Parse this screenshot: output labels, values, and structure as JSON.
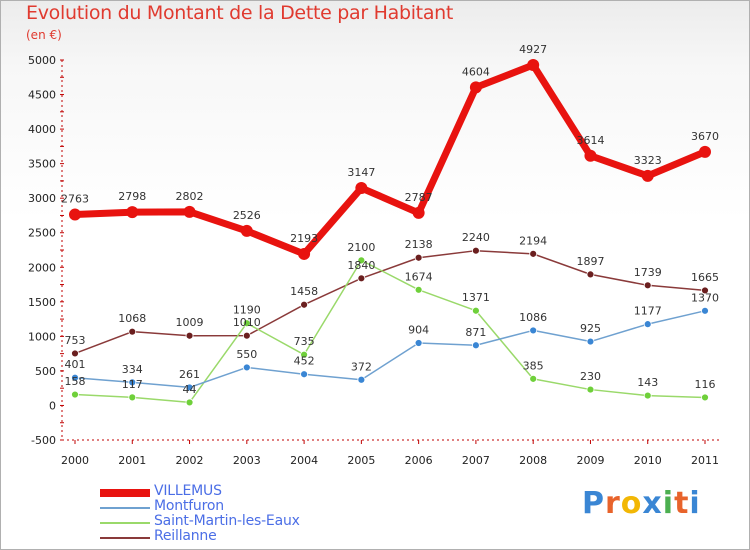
{
  "title": "Evolution du Montant de la Dette par Habitant",
  "unit": "(en €)",
  "logo": {
    "text": "Proxiti",
    "letters": [
      "P",
      "r",
      "o",
      "x",
      "i",
      "t",
      "i"
    ],
    "colors": [
      "#3a86d4",
      "#e8632b",
      "#f2b705",
      "#3a86d4",
      "#4caf50",
      "#e8632b",
      "#3a86d4"
    ]
  },
  "chart_data": {
    "type": "line",
    "x": [
      "2000",
      "2001",
      "2002",
      "2003",
      "2004",
      "2005",
      "2006",
      "2007",
      "2008",
      "2009",
      "2010",
      "2011"
    ],
    "yticks": [
      "-500",
      "0",
      "500",
      "1000",
      "1500",
      "2000",
      "2500",
      "3000",
      "3500",
      "4000",
      "4500",
      "5000"
    ],
    "ylim": [
      -500,
      5000
    ],
    "grid": false,
    "legend_position": "bottom-left",
    "series": [
      {
        "name": "VILLEMUS",
        "color": "#e8130f",
        "marker": "#e8130f",
        "width": 7,
        "radius": 6,
        "values": [
          2763,
          2798,
          2802,
          2526,
          2193,
          3147,
          2787,
          4604,
          4927,
          3614,
          3323,
          3670
        ],
        "labels": [
          "2763",
          "2798",
          "2802",
          "2526",
          "2193",
          "3147",
          "2787",
          "4604",
          "4927",
          "3614",
          "3323",
          "3670"
        ]
      },
      {
        "name": "Montfuron",
        "color": "#6fa1d0",
        "marker": "#3a86d4",
        "width": 1.5,
        "radius": 3.5,
        "values": [
          401,
          334,
          261,
          550,
          452,
          372,
          904,
          871,
          1086,
          925,
          1177,
          1370
        ],
        "labels": [
          "401",
          "334",
          "261",
          "550",
          "452",
          "372",
          "904",
          "871",
          "1086",
          "925",
          "1177",
          "1370"
        ]
      },
      {
        "name": "Saint-Martin-les-Eaux",
        "color": "#9ad96a",
        "marker": "#6fd03a",
        "width": 1.5,
        "radius": 3.5,
        "values": [
          158,
          117,
          44,
          1190,
          735,
          2100,
          1674,
          1371,
          385,
          230,
          143,
          116
        ],
        "labels": [
          "158",
          "117",
          "44",
          "1190",
          "735",
          "2100",
          "1674",
          "1371",
          "385",
          "230",
          "143",
          "116"
        ]
      },
      {
        "name": "Reillanne",
        "color": "#8a3a3a",
        "marker": "#6b1f1f",
        "width": 1.5,
        "radius": 3.5,
        "values": [
          753,
          1068,
          1009,
          1010,
          1458,
          1840,
          2138,
          2240,
          2194,
          1897,
          1739,
          1665
        ],
        "labels": [
          "753",
          "1068",
          "1009",
          "1010",
          "1458",
          "1840",
          "2138",
          "2240",
          "2194",
          "1897",
          "1739",
          "1665"
        ]
      }
    ]
  }
}
